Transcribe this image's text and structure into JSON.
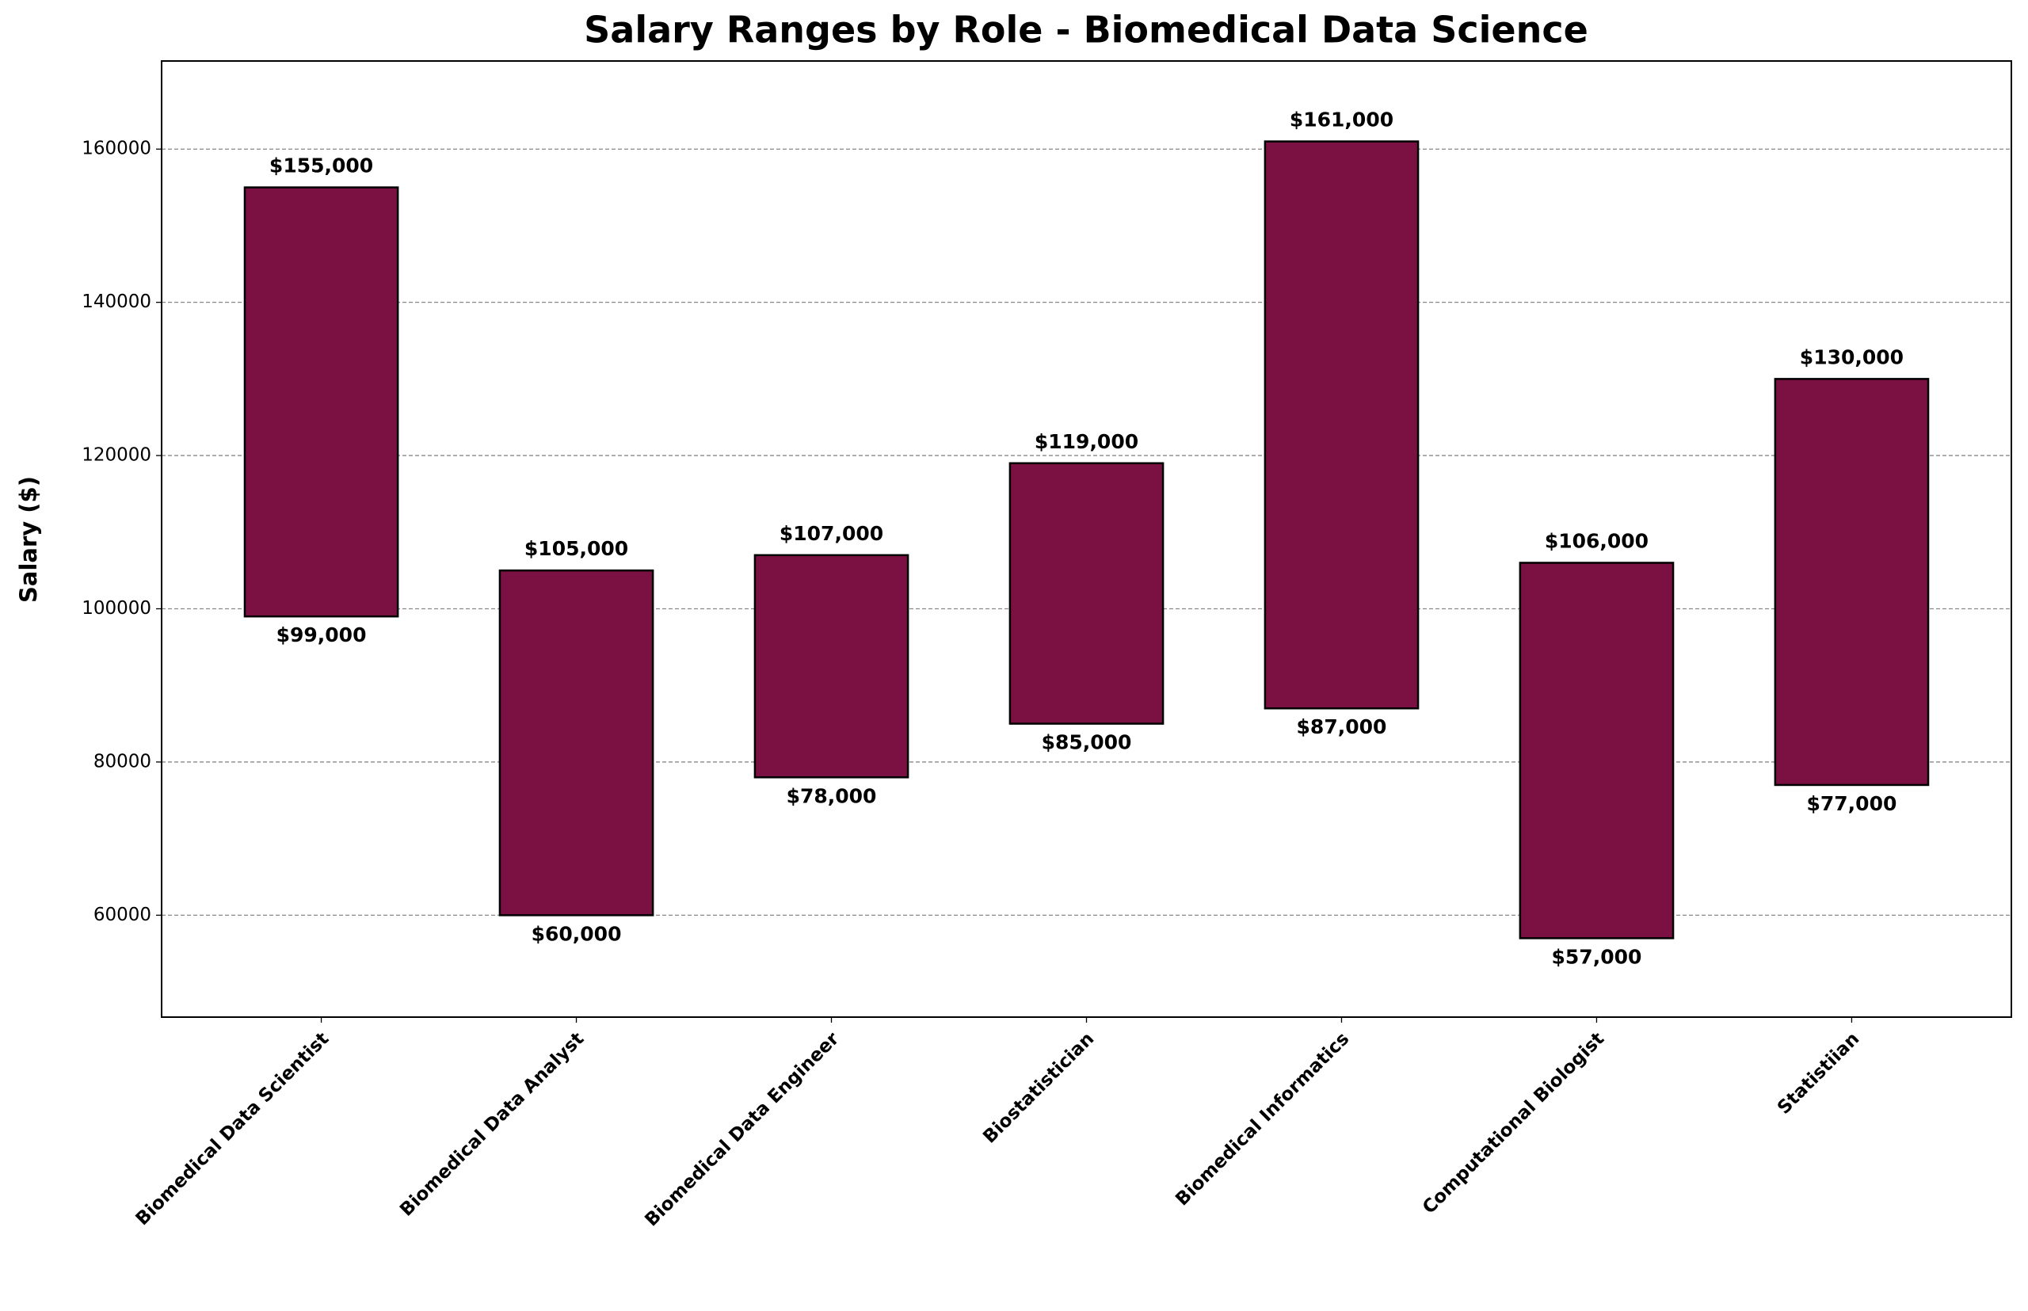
{
  "chart_data": {
    "type": "bar",
    "title": "Salary Ranges by Role - Biomedical Data Science",
    "ylabel": "Salary ($)",
    "categories": [
      "Biomedical Data Scientist",
      "Biomedical Data Analyst",
      "Biomedical Data Engineer",
      "Biostatistician",
      "Biomedical Informatics",
      "Computational Biologist",
      "Statistiian"
    ],
    "low": {
      "values": [
        99000,
        60000,
        78000,
        85000,
        87000,
        57000,
        77000
      ],
      "value_labels": [
        "$99,000",
        "$60,000",
        "$78,000",
        "$85,000",
        "$87,000",
        "$57,000",
        "$77,000"
      ]
    },
    "high": {
      "values": [
        155000,
        105000,
        107000,
        119000,
        161000,
        106000,
        130000
      ],
      "value_labels": [
        "$155,000",
        "$105,000",
        "$107,000",
        "$119,000",
        "$161,000",
        "$106,000",
        "$130,000"
      ]
    },
    "color": "#7b1042",
    "ylim": [
      46700,
      171500
    ],
    "yticks": [
      60000,
      80000,
      100000,
      120000,
      140000,
      160000
    ],
    "grid": true
  }
}
